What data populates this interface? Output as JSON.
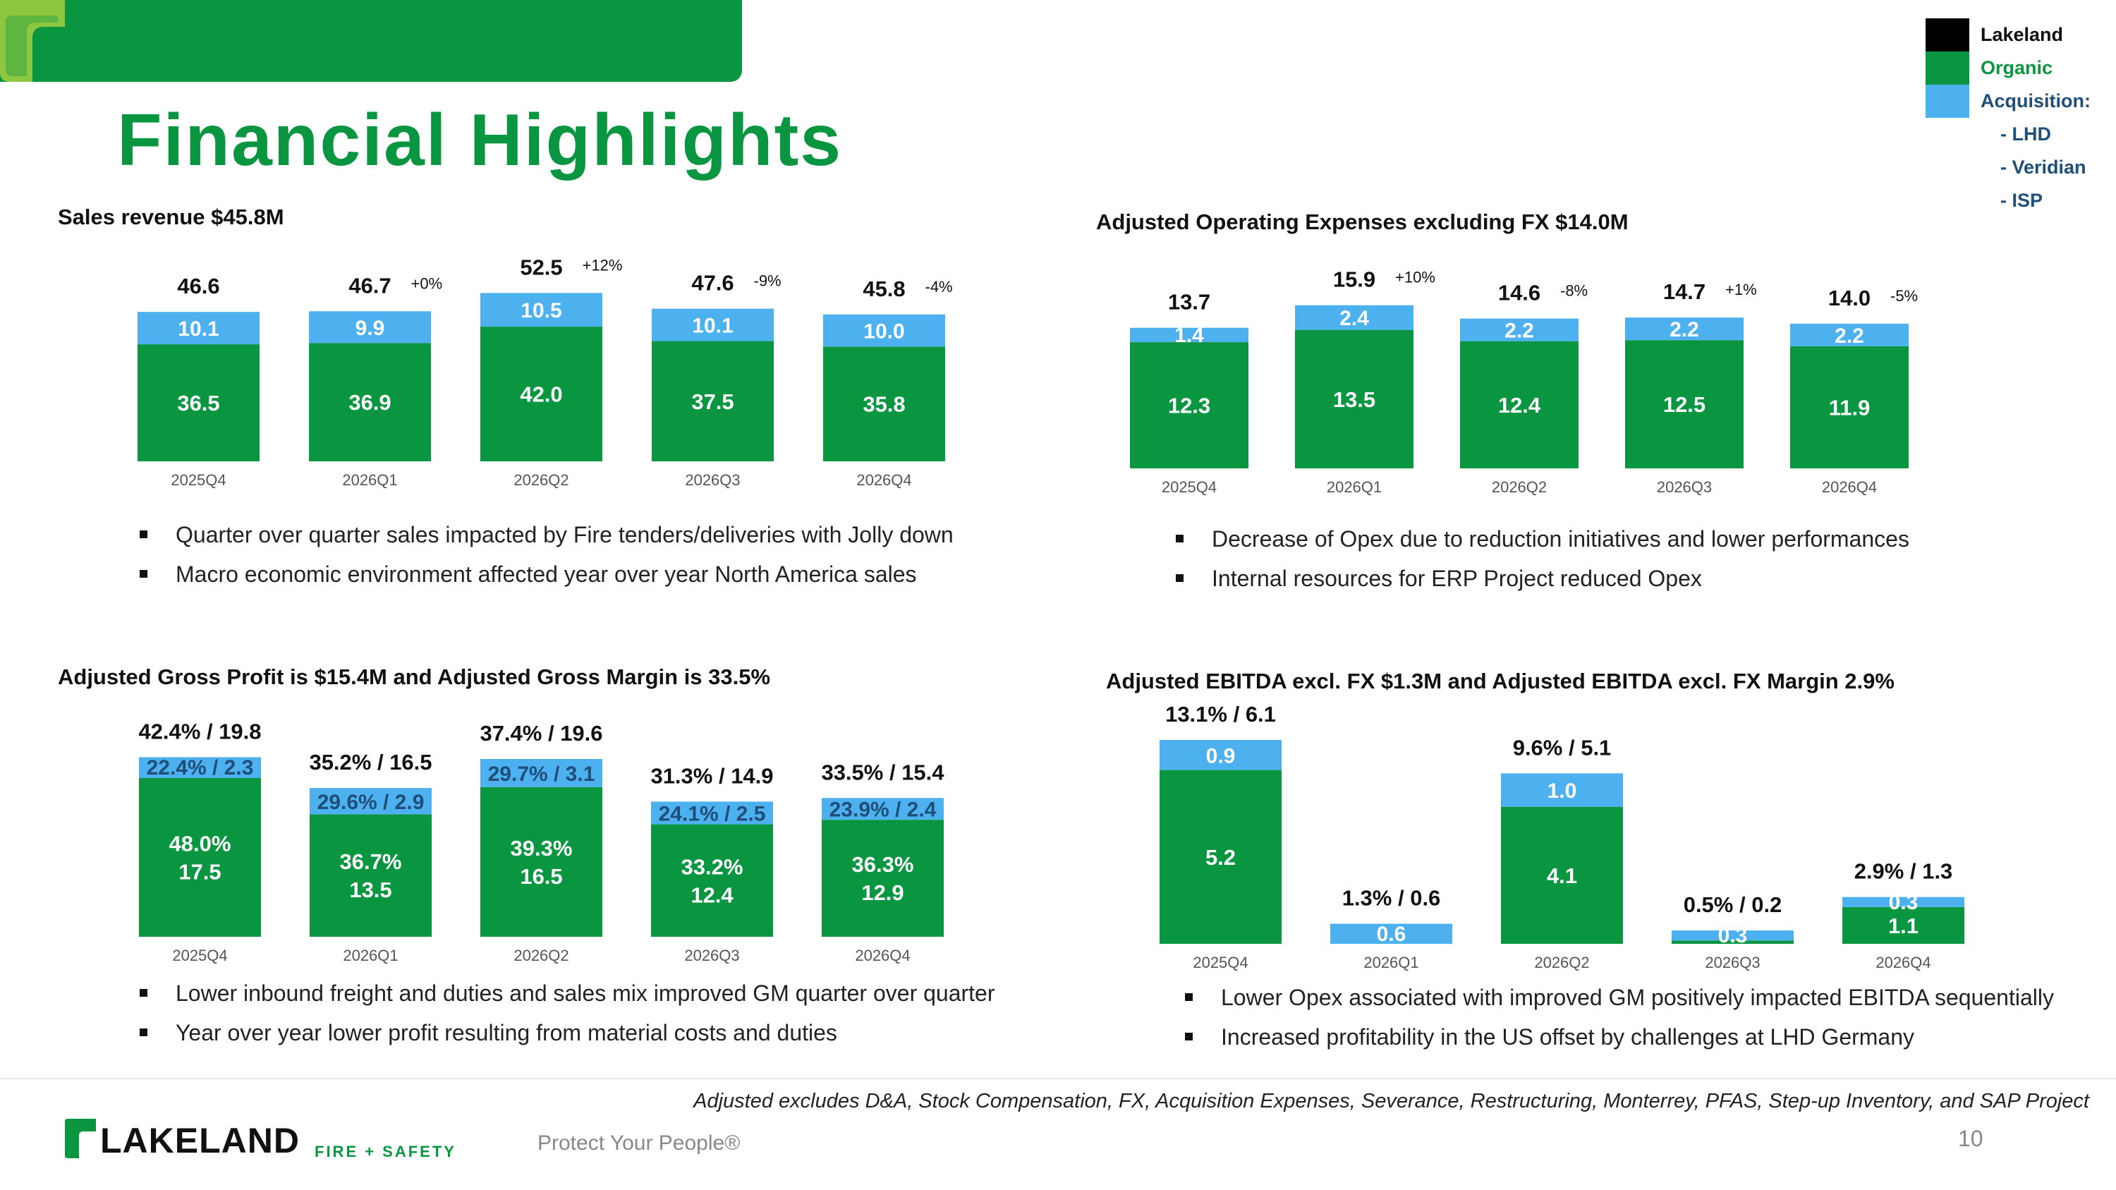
{
  "page": {
    "title": "Financial Highlights",
    "footnote": "Adjusted excludes D&A, Stock Compensation, FX, Acquisition Expenses, Severance, Restructuring, Monterrey, PFAS, Step-up Inventory, and SAP Project",
    "tagline": "Protect Your People®",
    "page_number": "10",
    "brand": {
      "name": "LAKELAND",
      "sub": "FIRE + SAFETY"
    }
  },
  "legend": {
    "items": [
      {
        "label": "Lakeland",
        "color": "#000000"
      },
      {
        "label": "Organic",
        "color": "#0a9641"
      },
      {
        "label": "Acquisition:",
        "color": "#4db1f0"
      }
    ],
    "sub_items": [
      "- LHD",
      "- Veridian",
      "- ISP"
    ]
  },
  "colors": {
    "organic": "#0a9641",
    "acquisition": "#4db1f0",
    "acq_text": "#1f4e79",
    "title_green": "#0a9641"
  },
  "sections": {
    "sales": {
      "title": "Sales revenue $45.8M",
      "bullets": [
        "Quarter over quarter sales impacted by Fire tenders/deliveries with Jolly down",
        "Macro economic environment affected year over year North America sales"
      ]
    },
    "opex": {
      "title": "Adjusted Operating Expenses excluding FX $14.0M",
      "bullets": [
        "Decrease of Opex due to reduction initiatives and lower performances",
        "Internal resources for ERP Project reduced Opex"
      ]
    },
    "gross": {
      "title": "Adjusted Gross Profit is $15.4M and Adjusted Gross Margin is 33.5%",
      "bullets": [
        "Lower inbound freight and duties and sales mix improved GM quarter over quarter",
        "Year over year lower profit resulting from material costs and duties"
      ]
    },
    "ebitda": {
      "title": "Adjusted EBITDA excl. FX $1.3M and Adjusted EBITDA excl. FX Margin 2.9%",
      "bullets": [
        "Lower Opex associated with improved GM positively impacted EBITDA sequentially",
        "Increased profitability in the US offset by challenges at LHD Germany"
      ]
    }
  },
  "chart_data": [
    {
      "id": "sales",
      "type": "bar",
      "stacked": true,
      "title": "Sales revenue $45.8M",
      "categories": [
        "2025Q4",
        "2026Q1",
        "2026Q2",
        "2026Q3",
        "2026Q4"
      ],
      "series": [
        {
          "name": "Organic",
          "values": [
            36.5,
            36.9,
            42.0,
            37.5,
            35.8
          ],
          "labels": [
            "36.5",
            "36.9",
            "42.0",
            "37.5",
            "35.8"
          ]
        },
        {
          "name": "Acquisition",
          "values": [
            10.1,
            9.9,
            10.5,
            10.1,
            10.0
          ],
          "labels": [
            "10.1",
            "9.9",
            "10.5",
            "10.1",
            "10.0"
          ]
        }
      ],
      "totals": [
        "46.6",
        "46.7",
        "52.5",
        "47.6",
        "45.8"
      ],
      "changes": [
        "",
        "+0%",
        "+12%",
        "-9%",
        "-4%"
      ],
      "ylim": [
        0,
        55
      ]
    },
    {
      "id": "opex",
      "type": "bar",
      "stacked": true,
      "title": "Adjusted Operating Expenses excluding FX $14.0M",
      "categories": [
        "2025Q4",
        "2026Q1",
        "2026Q2",
        "2026Q3",
        "2026Q4"
      ],
      "series": [
        {
          "name": "Organic",
          "values": [
            12.3,
            13.5,
            12.4,
            12.5,
            11.9
          ],
          "labels": [
            "12.3",
            "13.5",
            "12.4",
            "12.5",
            "11.9"
          ]
        },
        {
          "name": "Acquisition",
          "values": [
            1.4,
            2.4,
            2.2,
            2.2,
            2.2
          ],
          "labels": [
            "1.4",
            "2.4",
            "2.2",
            "2.2",
            "2.2"
          ]
        }
      ],
      "totals": [
        "13.7",
        "15.9",
        "14.6",
        "14.7",
        "14.0"
      ],
      "changes": [
        "",
        "+10%",
        "-8%",
        "+1%",
        "-5%"
      ],
      "ylim": [
        0,
        16.5
      ]
    },
    {
      "id": "gross",
      "type": "bar",
      "stacked": true,
      "title": "Adjusted Gross Profit is $15.4M and Adjusted Gross Margin is 33.5%",
      "categories": [
        "2025Q4",
        "2026Q1",
        "2026Q2",
        "2026Q3",
        "2026Q4"
      ],
      "series": [
        {
          "name": "Organic",
          "values": [
            17.5,
            13.5,
            16.5,
            12.4,
            12.9
          ],
          "labels": [
            "48.0%\n17.5",
            "36.7%\n13.5",
            "39.3%\n16.5",
            "33.2%\n12.4",
            "36.3%\n12.9"
          ]
        },
        {
          "name": "Acquisition",
          "values": [
            2.3,
            2.9,
            3.1,
            2.5,
            2.4
          ],
          "labels": [
            "22.4% / 2.3",
            "29.6% / 2.9",
            "29.7% / 3.1",
            "24.1% / 2.5",
            "23.9% / 2.4"
          ]
        }
      ],
      "totals": [
        "42.4% / 19.8",
        "35.2% / 16.5",
        "37.4% / 19.6",
        "31.3% / 14.9",
        "33.5% / 15.4"
      ],
      "ylim": [
        0,
        21
      ]
    },
    {
      "id": "ebitda",
      "type": "bar",
      "stacked": true,
      "title": "Adjusted EBITDA excl. FX $1.3M and Adjusted EBITDA excl. FX Margin 2.9%",
      "categories": [
        "2025Q4",
        "2026Q1",
        "2026Q2",
        "2026Q3",
        "2026Q4"
      ],
      "series": [
        {
          "name": "Organic",
          "values": [
            5.2,
            0,
            4.1,
            -0.1,
            1.1
          ],
          "labels": [
            "5.2",
            "",
            "4.1",
            "",
            "1.1"
          ]
        },
        {
          "name": "Acquisition",
          "values": [
            0.9,
            0.6,
            1.0,
            0.3,
            0.3
          ],
          "labels": [
            "0.9",
            "0.6",
            "1.0",
            "0.3",
            "0.3"
          ]
        }
      ],
      "totals": [
        "13.1% / 6.1",
        "1.3% / 0.6",
        "9.6% / 5.1",
        "0.5% / 0.2",
        "2.9% / 1.3"
      ],
      "ylim": [
        0,
        6.5
      ]
    }
  ]
}
